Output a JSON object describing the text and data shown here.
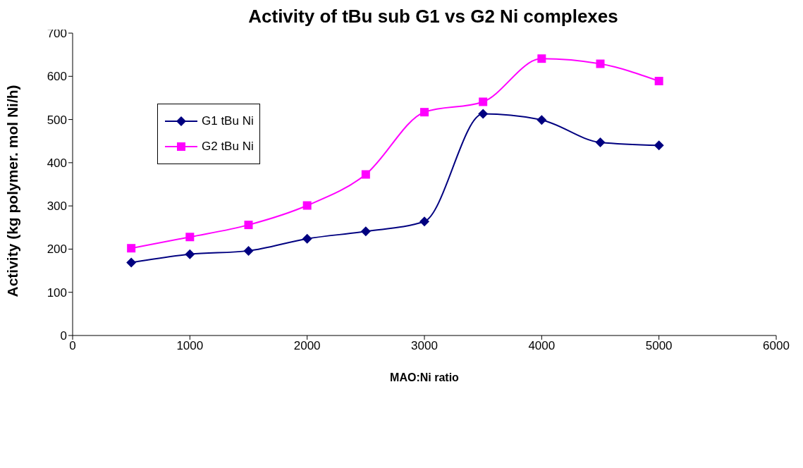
{
  "chart_data": {
    "type": "line",
    "title": "Activity of tBu sub G1 vs G2 Ni complexes",
    "xlabel": "MAO:Ni ratio",
    "ylabel": "Activity (kg polymer. mol Ni/h)",
    "x": [
      500,
      1000,
      1500,
      2000,
      2500,
      3000,
      3500,
      4000,
      4500,
      5000
    ],
    "series": [
      {
        "name": "G1 tBu Ni",
        "color": "#000080",
        "marker": "diamond",
        "values": [
          169,
          188,
          196,
          224,
          241,
          264,
          513,
          499,
          447,
          440
        ]
      },
      {
        "name": "G2 tBu Ni",
        "color": "#ff00ff",
        "marker": "square",
        "values": [
          202,
          228,
          256,
          301,
          373,
          517,
          541,
          641,
          629,
          589
        ]
      }
    ],
    "xlim": [
      0,
      6000
    ],
    "xticks": [
      0,
      1000,
      2000,
      3000,
      4000,
      5000,
      6000
    ],
    "ylim": [
      0,
      700
    ],
    "yticks": [
      0,
      100,
      200,
      300,
      400,
      500,
      600,
      700
    ],
    "grid": false,
    "legend": "top left"
  }
}
